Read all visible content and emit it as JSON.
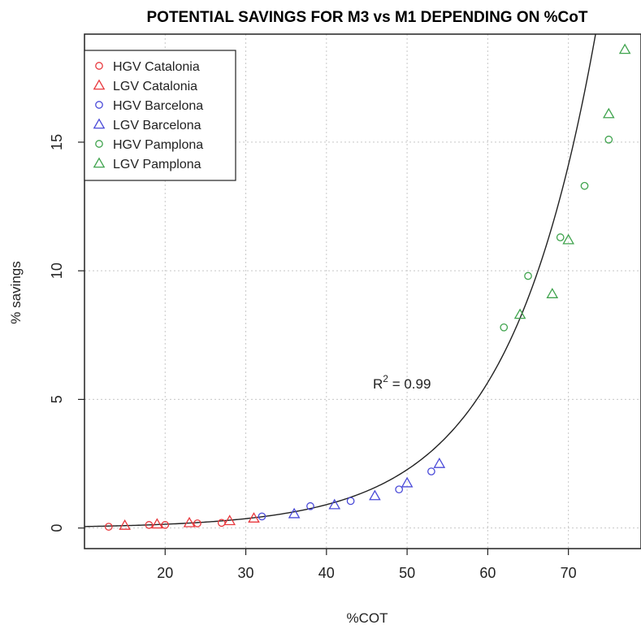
{
  "chart_data": {
    "type": "scatter",
    "title": "POTENTIAL SAVINGS FOR M3 vs M1 DEPENDING ON %CoT",
    "xlabel": "%COT",
    "ylabel": "% savings",
    "xlim": [
      10,
      79
    ],
    "ylim": [
      -0.8,
      19.2
    ],
    "xticks": [
      20,
      30,
      40,
      50,
      60,
      70
    ],
    "yticks": [
      0,
      5,
      10,
      15
    ],
    "grid": true,
    "legend_position": "top-left",
    "annotation": {
      "text_prefix": "R",
      "superscript": "2",
      "text_suffix": " = 0.99",
      "x": 69,
      "y": 5.9
    },
    "fit_curve": {
      "type": "exponential",
      "a": 0.0235,
      "b": 0.0914
    },
    "series": [
      {
        "name": "HGV Catalonia",
        "marker": "circle",
        "color": "#e8383d",
        "points": [
          [
            13,
            0.05
          ],
          [
            18,
            0.12
          ],
          [
            20,
            0.12
          ],
          [
            24,
            0.18
          ],
          [
            27,
            0.2
          ]
        ]
      },
      {
        "name": "LGV Catalonia",
        "marker": "triangle",
        "color": "#e8383d",
        "points": [
          [
            15,
            0.1
          ],
          [
            19,
            0.15
          ],
          [
            23,
            0.2
          ],
          [
            28,
            0.28
          ],
          [
            31,
            0.38
          ]
        ]
      },
      {
        "name": "HGV Barcelona",
        "marker": "circle",
        "color": "#4a4ad8",
        "points": [
          [
            32,
            0.45
          ],
          [
            38,
            0.85
          ],
          [
            43,
            1.05
          ],
          [
            49,
            1.5
          ],
          [
            53,
            2.2
          ]
        ]
      },
      {
        "name": "LGV Barcelona",
        "marker": "triangle",
        "color": "#4a4ad8",
        "points": [
          [
            36,
            0.55
          ],
          [
            41,
            0.9
          ],
          [
            46,
            1.25
          ],
          [
            50,
            1.75
          ],
          [
            54,
            2.5
          ]
        ]
      },
      {
        "name": "HGV Pamplona",
        "marker": "circle",
        "color": "#3fa34d",
        "points": [
          [
            62,
            7.8
          ],
          [
            65,
            9.8
          ],
          [
            69,
            11.3
          ],
          [
            72,
            13.3
          ],
          [
            75,
            15.1
          ]
        ]
      },
      {
        "name": "LGV Pamplona",
        "marker": "triangle",
        "color": "#3fa34d",
        "points": [
          [
            64,
            8.3
          ],
          [
            68,
            9.1
          ],
          [
            70,
            11.2
          ],
          [
            75,
            16.1
          ],
          [
            77,
            18.6
          ]
        ]
      }
    ]
  },
  "colors": {
    "curve": "#222222",
    "axes": "#222222",
    "grid": "#c8c8c8"
  }
}
